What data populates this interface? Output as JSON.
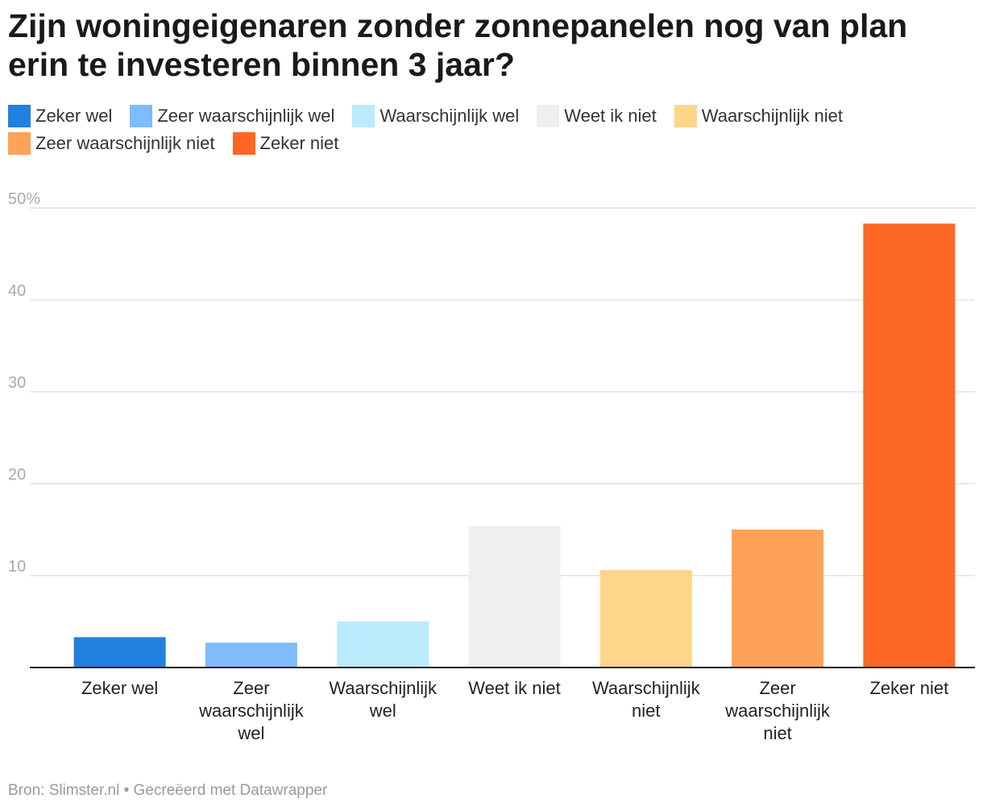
{
  "title": "Zijn woningeigenaren zonder zonnepanelen nog van plan erin te investeren binnen 3 jaar?",
  "legend": [
    {
      "label": "Zeker wel",
      "color": "#2280e0"
    },
    {
      "label": "Zeer waarschijnlijk wel",
      "color": "#7fbbff"
    },
    {
      "label": "Waarschijnlijk wel",
      "color": "#baeafc"
    },
    {
      "label": "Weet ik niet",
      "color": "#efefef"
    },
    {
      "label": "Waarschijnlijk niet",
      "color": "#fed58b"
    },
    {
      "label": "Zeer waarschijnlijk niet",
      "color": "#fea25a"
    },
    {
      "label": "Zeker niet",
      "color": "#fd6724"
    }
  ],
  "chart_data": {
    "type": "bar",
    "categories": [
      "Zeker wel",
      "Zeer waarschijnlijk wel",
      "Waarschijnlijk wel",
      "Weet ik niet",
      "Waarschijnlijk niet",
      "Zeer waarschijnlijk niet",
      "Zeker niet"
    ],
    "category_lines": [
      [
        "Zeker wel"
      ],
      [
        "Zeer",
        "waarschijnlijk",
        "wel"
      ],
      [
        "Waarschijnlijk",
        "wel"
      ],
      [
        "Weet ik niet"
      ],
      [
        "Waarschijnlijk",
        "niet"
      ],
      [
        "Zeer",
        "waarschijnlijk",
        "niet"
      ],
      [
        "Zeker niet"
      ]
    ],
    "values": [
      3.3,
      2.7,
      5.0,
      15.4,
      10.6,
      15.0,
      48.3
    ],
    "colors": [
      "#2280e0",
      "#7fbbff",
      "#baeafc",
      "#efefef",
      "#fed58b",
      "#fea25a",
      "#fd6724"
    ],
    "ylim": [
      0,
      50
    ],
    "yticks": [
      10,
      20,
      30,
      40,
      50
    ],
    "ytick_labels": [
      "10",
      "20",
      "30",
      "40",
      "50%"
    ],
    "title": "Zijn woningeigenaren zonder zonnepanelen nog van plan erin te investeren binnen 3 jaar?",
    "xlabel": "",
    "ylabel": "",
    "grid": true
  },
  "footer": "Bron: Slimster.nl • Gecreëerd met Datawrapper"
}
